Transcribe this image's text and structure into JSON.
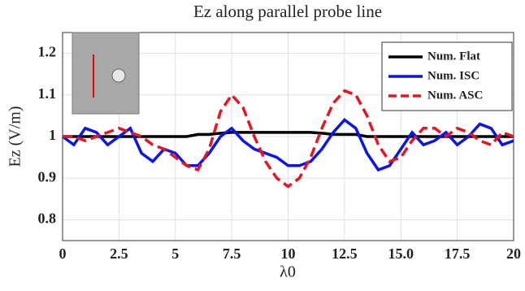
{
  "chart_data": {
    "type": "line",
    "title": "Ez along parallel probe line",
    "x_label": "λ0",
    "y_label": "Ez (V/m)",
    "x": [
      0,
      0.5,
      1,
      1.5,
      2,
      2.5,
      3,
      3.5,
      4,
      4.5,
      5,
      5.5,
      6,
      6.5,
      7,
      7.5,
      8,
      8.5,
      9,
      9.5,
      10,
      10.5,
      11,
      11.5,
      12,
      12.5,
      13,
      13.5,
      14,
      14.5,
      15,
      15.5,
      16,
      16.5,
      17,
      17.5,
      18,
      18.5,
      19,
      19.5,
      20
    ],
    "series": [
      {
        "name": "Num. Flat",
        "color": "#000000",
        "dash": "solid",
        "values": [
          1.0,
          1.0,
          1.0,
          1.0,
          1.0,
          1.0,
          1.0,
          1.0,
          1.0,
          1.0,
          1.0,
          1.0,
          1.005,
          1.005,
          1.008,
          1.01,
          1.01,
          1.01,
          1.01,
          1.01,
          1.01,
          1.01,
          1.01,
          1.008,
          1.005,
          1.005,
          1.005,
          1.0,
          1.0,
          1.0,
          1.0,
          1.0,
          1.0,
          1.0,
          1.0,
          1.0,
          1.0,
          1.0,
          1.0,
          1.0,
          1.0
        ]
      },
      {
        "name": "Num. ISC",
        "color": "#0a14f0",
        "dash": "solid",
        "values": [
          1.0,
          0.98,
          1.02,
          1.01,
          0.98,
          1.0,
          1.02,
          0.96,
          0.94,
          0.97,
          0.96,
          0.93,
          0.93,
          0.96,
          1.0,
          1.02,
          0.99,
          0.97,
          0.96,
          0.95,
          0.93,
          0.93,
          0.94,
          0.97,
          1.01,
          1.04,
          1.02,
          0.96,
          0.92,
          0.93,
          0.97,
          1.01,
          0.98,
          0.99,
          1.01,
          0.98,
          1.0,
          1.03,
          1.02,
          0.98,
          0.99
        ]
      },
      {
        "name": "Num. ASC",
        "color": "#e8141e",
        "dash": "dashed",
        "values": [
          1.0,
          1.0,
          0.99,
          1.0,
          1.01,
          1.02,
          1.01,
          1.0,
          0.98,
          0.97,
          0.95,
          0.93,
          0.92,
          0.97,
          1.06,
          1.1,
          1.07,
          1.0,
          0.94,
          0.9,
          0.88,
          0.9,
          0.95,
          1.02,
          1.08,
          1.11,
          1.1,
          1.05,
          0.98,
          0.94,
          0.95,
          0.99,
          1.02,
          1.02,
          1.0,
          1.02,
          1.01,
          0.99,
          0.98,
          1.01,
          1.0
        ]
      }
    ],
    "xlim": [
      0,
      20
    ],
    "ylim": [
      0.75,
      1.25
    ],
    "xticks": [
      0,
      2.5,
      5,
      7.5,
      10,
      12.5,
      {
        "value": 15,
        "label": "15.0"
      },
      17.5,
      20
    ],
    "yticks": [
      0.8,
      0.9,
      1,
      1.1,
      1.2
    ],
    "grid": true,
    "legend": "upper right"
  }
}
